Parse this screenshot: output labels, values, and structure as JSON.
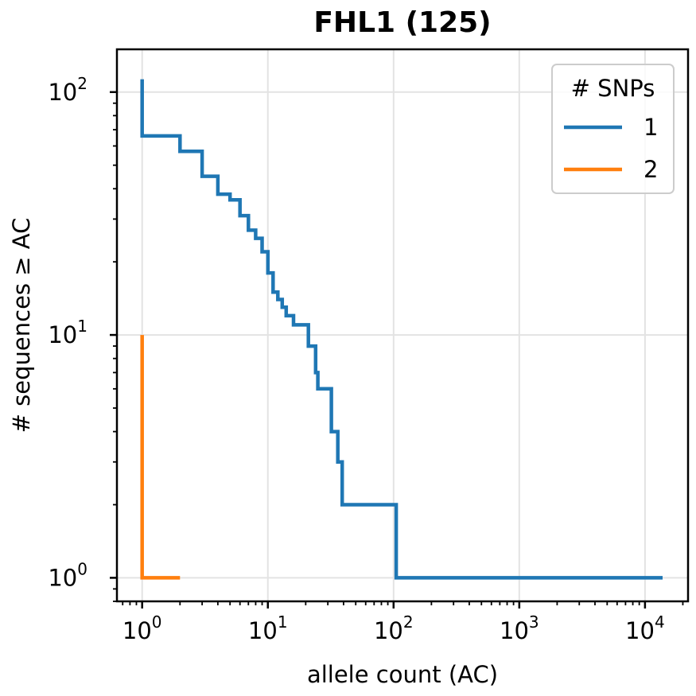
{
  "chart_data": {
    "type": "line",
    "step": true,
    "title": "FHL1 (125)",
    "xlabel": "allele count (AC)",
    "ylabel": "# sequences ≥ AC",
    "xscale": "log",
    "yscale": "log",
    "xlim": [
      0.63,
      22000
    ],
    "ylim": [
      0.8,
      150
    ],
    "grid": true,
    "x_ticks": [
      {
        "value": 1,
        "base": "10",
        "exp": "0"
      },
      {
        "value": 10,
        "base": "10",
        "exp": "1"
      },
      {
        "value": 100,
        "base": "10",
        "exp": "2"
      },
      {
        "value": 1000,
        "base": "10",
        "exp": "3"
      },
      {
        "value": 10000,
        "base": "10",
        "exp": "4"
      }
    ],
    "y_ticks": [
      {
        "value": 1,
        "base": "10",
        "exp": "0"
      },
      {
        "value": 10,
        "base": "10",
        "exp": "1"
      },
      {
        "value": 100,
        "base": "10",
        "exp": "2"
      }
    ],
    "legend": {
      "title": "# SNPs",
      "placement": "top-right"
    },
    "series": [
      {
        "name": "1",
        "color": "#1f77b4",
        "points": [
          [
            1,
            113
          ],
          [
            1,
            66
          ],
          [
            2,
            66
          ],
          [
            2,
            57
          ],
          [
            3,
            57
          ],
          [
            3,
            45
          ],
          [
            4,
            45
          ],
          [
            4,
            38
          ],
          [
            5,
            38
          ],
          [
            5,
            36
          ],
          [
            6,
            36
          ],
          [
            6,
            31
          ],
          [
            7,
            31
          ],
          [
            7,
            27
          ],
          [
            8,
            27
          ],
          [
            8,
            25
          ],
          [
            9,
            25
          ],
          [
            9,
            22
          ],
          [
            10,
            22
          ],
          [
            10,
            18
          ],
          [
            11,
            18
          ],
          [
            11,
            15
          ],
          [
            12,
            15
          ],
          [
            12,
            14
          ],
          [
            13,
            14
          ],
          [
            13,
            13
          ],
          [
            14,
            13
          ],
          [
            14,
            12
          ],
          [
            16,
            12
          ],
          [
            16,
            11
          ],
          [
            21,
            11
          ],
          [
            21,
            9
          ],
          [
            24,
            9
          ],
          [
            24,
            7
          ],
          [
            25,
            7
          ],
          [
            25,
            6
          ],
          [
            32,
            6
          ],
          [
            32,
            4
          ],
          [
            36,
            4
          ],
          [
            36,
            3
          ],
          [
            39,
            3
          ],
          [
            39,
            2
          ],
          [
            105,
            2
          ],
          [
            105,
            1
          ],
          [
            13800,
            1
          ]
        ]
      },
      {
        "name": "2",
        "color": "#ff7f0e",
        "points": [
          [
            1,
            10
          ],
          [
            1,
            1
          ],
          [
            2,
            1
          ]
        ]
      }
    ]
  }
}
